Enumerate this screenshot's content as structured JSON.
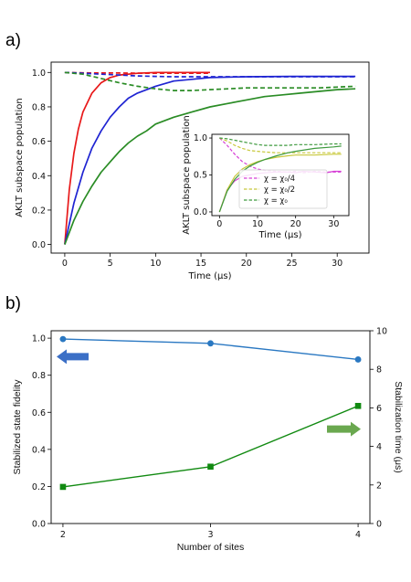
{
  "panels": {
    "a_label": "a)",
    "b_label": "b)"
  },
  "chart_data": [
    {
      "type": "line",
      "xlabel": "Time (μs)",
      "ylabel": "AKLT subspace population",
      "xlim": [
        -1.5,
        33.5
      ],
      "ylim": [
        -0.05,
        1.06
      ],
      "xticks": [
        "0",
        "5",
        "10",
        "15",
        "20",
        "25",
        "30"
      ],
      "yticks": [
        "0.0",
        "0.2",
        "0.4",
        "0.6",
        "0.8",
        "1.0"
      ],
      "grid": false,
      "series": [
        {
          "color": "#e8191a",
          "style": "solid",
          "x": [
            0,
            0.5,
            1,
            1.5,
            2,
            3,
            4,
            5,
            6,
            8,
            10,
            12,
            14,
            16
          ],
          "y": [
            0.0,
            0.32,
            0.53,
            0.67,
            0.77,
            0.88,
            0.94,
            0.97,
            0.985,
            0.995,
            1.0,
            1.0,
            1.0,
            1.0
          ]
        },
        {
          "color": "#e8191a",
          "style": "dashed",
          "x": [
            0,
            2,
            4,
            6,
            8,
            10,
            12,
            14,
            16
          ],
          "y": [
            1.0,
            0.998,
            0.997,
            0.997,
            0.996,
            0.996,
            0.996,
            0.996,
            0.996
          ]
        },
        {
          "color": "#1f24d2",
          "style": "solid",
          "x": [
            0,
            1,
            2,
            3,
            4,
            5,
            6,
            7,
            8,
            10,
            12,
            14,
            16,
            18,
            20,
            25,
            32
          ],
          "y": [
            0.0,
            0.24,
            0.42,
            0.56,
            0.66,
            0.74,
            0.8,
            0.85,
            0.88,
            0.92,
            0.95,
            0.96,
            0.97,
            0.973,
            0.975,
            0.977,
            0.977
          ]
        },
        {
          "color": "#1f24d2",
          "style": "dashed",
          "x": [
            0,
            2,
            4,
            6,
            8,
            10,
            12,
            14,
            16,
            20,
            25,
            32
          ],
          "y": [
            1.0,
            0.995,
            0.99,
            0.985,
            0.98,
            0.977,
            0.975,
            0.975,
            0.975,
            0.975,
            0.975,
            0.975
          ]
        },
        {
          "color": "#2a8c25",
          "style": "solid",
          "x": [
            0,
            1,
            2,
            3,
            4,
            5,
            6,
            7,
            8,
            9,
            10,
            12,
            14,
            16,
            18,
            20,
            22,
            24,
            26,
            28,
            30,
            32
          ],
          "y": [
            0.0,
            0.14,
            0.25,
            0.34,
            0.42,
            0.48,
            0.54,
            0.59,
            0.63,
            0.66,
            0.7,
            0.74,
            0.77,
            0.8,
            0.82,
            0.84,
            0.86,
            0.87,
            0.88,
            0.89,
            0.9,
            0.905
          ]
        },
        {
          "color": "#2a8c25",
          "style": "dashed",
          "x": [
            0,
            2,
            4,
            6,
            8,
            10,
            12,
            14,
            16,
            18,
            20,
            22,
            24,
            26,
            28,
            30,
            32
          ],
          "y": [
            1.0,
            0.99,
            0.965,
            0.94,
            0.92,
            0.905,
            0.895,
            0.895,
            0.9,
            0.905,
            0.91,
            0.91,
            0.91,
            0.91,
            0.91,
            0.915,
            0.92
          ]
        }
      ],
      "inset": {
        "xlabel": "Time (μs)",
        "ylabel": "AKLT subspace population",
        "xlim": [
          -2,
          34
        ],
        "ylim": [
          -0.05,
          1.05
        ],
        "xticks": [
          "0",
          "10",
          "20",
          "30"
        ],
        "yticks": [
          "0.0",
          "0.5",
          "1.0"
        ],
        "legend_position": "lower-left",
        "legend": [
          {
            "label": "χ = χ₀/4",
            "color": "#d63fd6"
          },
          {
            "label": "χ = χ₀/2",
            "color": "#c8c83a"
          },
          {
            "label": "χ = χ₀",
            "color": "#3e9a3e"
          }
        ],
        "series": [
          {
            "color": "#d63fd6",
            "style": "solid",
            "x": [
              0,
              2,
              4,
              6,
              8,
              10,
              12,
              15,
              18,
              20,
              22,
              25,
              28,
              30,
              32
            ],
            "y": [
              0.0,
              0.3,
              0.42,
              0.48,
              0.5,
              0.52,
              0.53,
              0.54,
              0.54,
              0.53,
              0.55,
              0.54,
              0.53,
              0.55,
              0.55
            ]
          },
          {
            "color": "#d63fd6",
            "style": "dashed",
            "x": [
              0,
              2,
              4,
              6,
              8,
              10,
              12,
              15,
              18,
              20,
              22,
              25,
              28,
              30,
              32
            ],
            "y": [
              1.0,
              0.9,
              0.78,
              0.68,
              0.62,
              0.58,
              0.56,
              0.55,
              0.54,
              0.55,
              0.53,
              0.55,
              0.54,
              0.54,
              0.54
            ]
          },
          {
            "color": "#c8c83a",
            "style": "solid",
            "x": [
              0,
              2,
              4,
              6,
              8,
              10,
              12,
              15,
              18,
              20,
              25,
              30,
              32
            ],
            "y": [
              0.0,
              0.3,
              0.48,
              0.58,
              0.64,
              0.68,
              0.71,
              0.74,
              0.76,
              0.77,
              0.77,
              0.78,
              0.78
            ]
          },
          {
            "color": "#c8c83a",
            "style": "dashed",
            "x": [
              0,
              2,
              4,
              6,
              8,
              10,
              12,
              15,
              18,
              20,
              25,
              30,
              32
            ],
            "y": [
              1.0,
              0.96,
              0.9,
              0.86,
              0.83,
              0.82,
              0.81,
              0.8,
              0.8,
              0.8,
              0.8,
              0.8,
              0.8
            ]
          },
          {
            "color": "#3e9a3e",
            "style": "solid",
            "x": [
              0,
              2,
              4,
              6,
              8,
              10,
              12,
              15,
              18,
              20,
              25,
              30,
              32
            ],
            "y": [
              0.0,
              0.28,
              0.44,
              0.55,
              0.62,
              0.67,
              0.71,
              0.76,
              0.8,
              0.82,
              0.86,
              0.88,
              0.89
            ]
          },
          {
            "color": "#3e9a3e",
            "style": "dashed",
            "x": [
              0,
              2,
              4,
              6,
              8,
              10,
              12,
              15,
              18,
              20,
              25,
              30,
              32
            ],
            "y": [
              1.0,
              0.99,
              0.97,
              0.95,
              0.93,
              0.91,
              0.9,
              0.9,
              0.9,
              0.91,
              0.91,
              0.92,
              0.92
            ]
          }
        ]
      }
    },
    {
      "type": "line",
      "xlabel": "Number of sites",
      "ylabel": "Stabilized state fidelity",
      "ylabel_right": "Stabilization time (μs)",
      "xlim": [
        1.92,
        4.08
      ],
      "ylim": [
        0,
        1.04
      ],
      "ylim_right": [
        0,
        10
      ],
      "xticks": [
        "2",
        "3",
        "4"
      ],
      "yticks": [
        "0.0",
        "0.2",
        "0.4",
        "0.6",
        "0.8",
        "1.0"
      ],
      "yticks_right": [
        "0",
        "2",
        "4",
        "6",
        "8",
        "10"
      ],
      "categories": [
        2,
        3,
        4
      ],
      "series": [
        {
          "axis": "left",
          "color": "#2a78c2",
          "marker": "circle",
          "values": [
            0.995,
            0.972,
            0.885
          ]
        },
        {
          "axis": "right",
          "color": "#118a11",
          "marker": "square",
          "values": [
            1.9,
            2.95,
            6.1
          ]
        }
      ],
      "arrows": [
        {
          "direction": "left",
          "color": "#3b6fc6"
        },
        {
          "direction": "right",
          "color": "#6aa84f"
        }
      ]
    }
  ]
}
